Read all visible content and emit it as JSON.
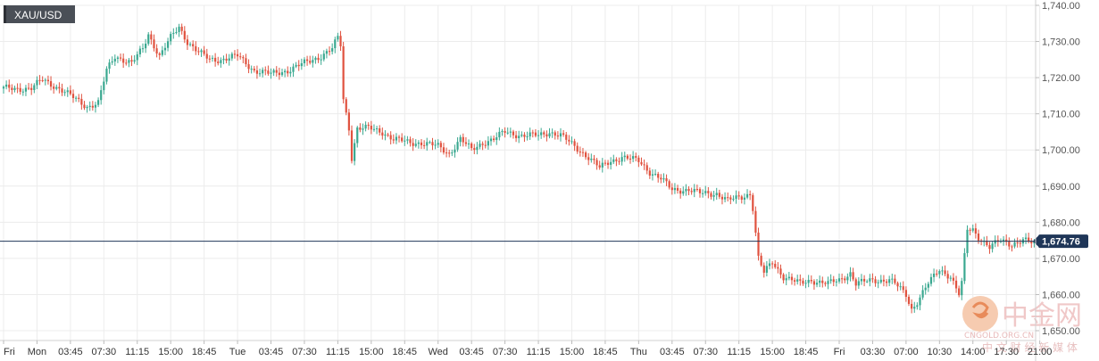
{
  "chart_data": {
    "type": "candlestick",
    "symbol": "XAU/USD",
    "y_axis": {
      "min": 1650,
      "max": 1740,
      "ticks": [
        "1,650.00",
        "1,660.00",
        "1,670.00",
        "1,680.00",
        "1,690.00",
        "1,700.00",
        "1,710.00",
        "1,720.00",
        "1,730.00",
        "1,740.00"
      ],
      "tick_values": [
        1650,
        1660,
        1670,
        1680,
        1690,
        1700,
        1710,
        1720,
        1730,
        1740
      ],
      "position": "right"
    },
    "x_axis": {
      "labels": [
        "Fri",
        "Mon",
        "03:45",
        "07:30",
        "11:15",
        "15:00",
        "18:45",
        "Tue",
        "03:45",
        "07:30",
        "11:15",
        "15:00",
        "18:45",
        "Wed",
        "03:45",
        "07:30",
        "11:15",
        "15:00",
        "18:45",
        "Thu",
        "03:45",
        "07:30",
        "11:15",
        "15:00",
        "18:45",
        "Fri",
        "03:30",
        "07:00",
        "10:30",
        "14:00",
        "17:30",
        "21:00"
      ],
      "label_index": [
        0,
        12,
        24,
        36,
        48,
        60,
        72,
        84,
        96,
        108,
        120,
        132,
        144,
        156,
        168,
        180,
        192,
        204,
        216,
        228,
        240,
        252,
        264,
        276,
        288,
        300,
        312,
        324,
        336,
        348,
        360,
        372
      ]
    },
    "current_price": 1674.76,
    "current_price_label": "1,674.76",
    "grid": true,
    "colors": {
      "up": "#3aa890",
      "down": "#e0523f",
      "price_line": "#1f3658",
      "grid": "#ececec"
    },
    "keypoints": [
      [
        0,
        1717
      ],
      [
        10,
        1717
      ],
      [
        14,
        1719.5
      ],
      [
        20,
        1717
      ],
      [
        24,
        1715
      ],
      [
        30,
        1712
      ],
      [
        34,
        1713
      ],
      [
        37,
        1722
      ],
      [
        40,
        1726
      ],
      [
        46,
        1724
      ],
      [
        50,
        1728
      ],
      [
        52,
        1732
      ],
      [
        56,
        1726
      ],
      [
        60,
        1731
      ],
      [
        63,
        1734
      ],
      [
        66,
        1730
      ],
      [
        70,
        1727
      ],
      [
        74,
        1725
      ],
      [
        78,
        1725
      ],
      [
        84,
        1726
      ],
      [
        90,
        1722
      ],
      [
        96,
        1721
      ],
      [
        102,
        1722
      ],
      [
        108,
        1724
      ],
      [
        114,
        1726
      ],
      [
        118,
        1728
      ],
      [
        120,
        1731
      ],
      [
        121,
        1729
      ],
      [
        122,
        1714
      ],
      [
        124,
        1706
      ],
      [
        125,
        1698
      ],
      [
        127,
        1706
      ],
      [
        131,
        1706
      ],
      [
        136,
        1705
      ],
      [
        140,
        1703
      ],
      [
        146,
        1702
      ],
      [
        150,
        1702
      ],
      [
        156,
        1701
      ],
      [
        160,
        1699
      ],
      [
        164,
        1703
      ],
      [
        168,
        1700
      ],
      [
        172,
        1702
      ],
      [
        176,
        1703
      ],
      [
        180,
        1705
      ],
      [
        186,
        1704
      ],
      [
        192,
        1704
      ],
      [
        196,
        1705
      ],
      [
        200,
        1704
      ],
      [
        205,
        1701
      ],
      [
        210,
        1698
      ],
      [
        214,
        1695
      ],
      [
        218,
        1697
      ],
      [
        222,
        1698
      ],
      [
        228,
        1697
      ],
      [
        232,
        1694
      ],
      [
        236,
        1692
      ],
      [
        240,
        1689
      ],
      [
        246,
        1689
      ],
      [
        250,
        1688
      ],
      [
        256,
        1688
      ],
      [
        260,
        1686
      ],
      [
        265,
        1687
      ],
      [
        268,
        1688
      ],
      [
        269,
        1684
      ],
      [
        271,
        1670
      ],
      [
        273,
        1666
      ],
      [
        276,
        1669
      ],
      [
        280,
        1665
      ],
      [
        286,
        1663
      ],
      [
        290,
        1664
      ],
      [
        296,
        1663
      ],
      [
        300,
        1664
      ],
      [
        304,
        1666
      ],
      [
        306,
        1663
      ],
      [
        312,
        1664
      ],
      [
        318,
        1664
      ],
      [
        320,
        1663
      ],
      [
        324,
        1660
      ],
      [
        326,
        1656
      ],
      [
        328,
        1658
      ],
      [
        332,
        1663
      ],
      [
        336,
        1667
      ],
      [
        340,
        1665
      ],
      [
        343,
        1660
      ],
      [
        344,
        1663
      ],
      [
        346,
        1678
      ],
      [
        348,
        1678
      ],
      [
        350,
        1676
      ],
      [
        354,
        1673
      ],
      [
        358,
        1675
      ],
      [
        362,
        1674
      ],
      [
        366,
        1675
      ],
      [
        370,
        1674
      ]
    ]
  },
  "watermark": {
    "brand_cn": "中金网",
    "brand_en": "CNGOLD.ORG.CN",
    "tagline_cn": "中 文 财 经 新 媒 体"
  }
}
